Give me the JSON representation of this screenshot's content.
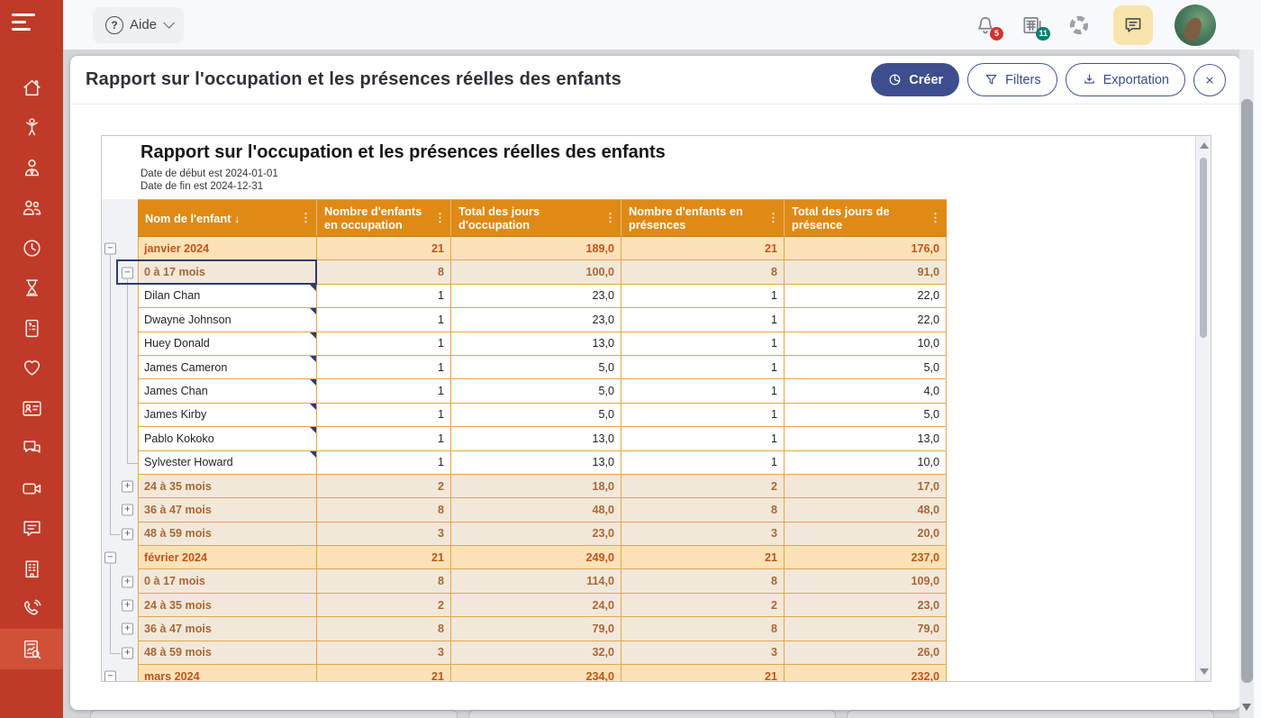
{
  "topbar": {
    "help_label": "Aide",
    "notifications_badge": "5",
    "news_badge": "11"
  },
  "sidebar": {
    "items": [
      {
        "id": "home",
        "icon": "home-icon"
      },
      {
        "id": "children",
        "icon": "child-icon"
      },
      {
        "id": "staff",
        "icon": "staff-icon"
      },
      {
        "id": "contacts",
        "icon": "people-icon"
      },
      {
        "id": "hours",
        "icon": "clock-icon"
      },
      {
        "id": "waitlist",
        "icon": "hourglass-icon"
      },
      {
        "id": "billing",
        "icon": "invoice-icon"
      },
      {
        "id": "health",
        "icon": "heart-icon"
      },
      {
        "id": "profiles",
        "icon": "id-card-icon"
      },
      {
        "id": "conversations",
        "icon": "chats-icon"
      },
      {
        "id": "video",
        "icon": "video-camera-icon"
      },
      {
        "id": "messages",
        "icon": "message-icon"
      },
      {
        "id": "organization",
        "icon": "building-icon"
      },
      {
        "id": "calls",
        "icon": "phone-icon"
      },
      {
        "id": "reports",
        "icon": "report-search-icon",
        "active": true
      }
    ]
  },
  "modal": {
    "title": "Rapport sur l'occupation et les présences réelles des enfants",
    "create_label": "Créer",
    "filters_label": "Filters",
    "export_label": "Exportation"
  },
  "report": {
    "title": "Rapport sur l'occupation et les présences réelles des enfants",
    "subtitles": [
      "Date de début est 2024-01-01",
      "Date de fin est 2024-12-31"
    ],
    "table": {
      "sort_indicator": "↓",
      "columns": [
        "Nom de l'enfant",
        "Nombre d'enfants en occupation",
        "Total des jours d'occupation",
        "Nombre d'enfants en présences",
        "Total des jours de présence"
      ],
      "rows": [
        {
          "label": "janvier 2024",
          "type": "month",
          "exp": "minus",
          "lines": {
            "l1": "box",
            "l2": "none"
          },
          "values": [
            "21",
            "189,0",
            "21",
            "176,0"
          ]
        },
        {
          "label": "0 à 17 mois",
          "type": "age",
          "exp": "minus",
          "selected": true,
          "lines": {
            "l1": "line",
            "l2": "box"
          },
          "values": [
            "8",
            "100,0",
            "8",
            "91,0"
          ]
        },
        {
          "label": "Dilan Chan",
          "type": "child",
          "lines": {
            "l1": "line",
            "l2": "line"
          },
          "values": [
            "1",
            "23,0",
            "1",
            "22,0"
          ]
        },
        {
          "label": "Dwayne Johnson",
          "type": "child",
          "lines": {
            "l1": "line",
            "l2": "line"
          },
          "values": [
            "1",
            "23,0",
            "1",
            "22,0"
          ]
        },
        {
          "label": "Huey Donald",
          "type": "child",
          "lines": {
            "l1": "line",
            "l2": "line"
          },
          "values": [
            "1",
            "13,0",
            "1",
            "10,0"
          ]
        },
        {
          "label": "James Cameron",
          "type": "child",
          "lines": {
            "l1": "line",
            "l2": "line"
          },
          "values": [
            "1",
            "5,0",
            "1",
            "5,0"
          ]
        },
        {
          "label": "James Chan",
          "type": "child",
          "lines": {
            "l1": "line",
            "l2": "line"
          },
          "values": [
            "1",
            "5,0",
            "1",
            "4,0"
          ]
        },
        {
          "label": "James Kirby",
          "type": "child",
          "lines": {
            "l1": "line",
            "l2": "line"
          },
          "values": [
            "1",
            "5,0",
            "1",
            "5,0"
          ]
        },
        {
          "label": "Pablo Kokoko",
          "type": "child",
          "lines": {
            "l1": "line",
            "l2": "line"
          },
          "values": [
            "1",
            "13,0",
            "1",
            "13,0"
          ]
        },
        {
          "label": "Sylvester Howard",
          "type": "child",
          "lines": {
            "l1": "line",
            "l2": "corner"
          },
          "values": [
            "1",
            "13,0",
            "1",
            "10,0"
          ]
        },
        {
          "label": "24 à 35 mois",
          "type": "age",
          "exp": "plus",
          "lines": {
            "l1": "line",
            "l2": "box"
          },
          "values": [
            "2",
            "18,0",
            "2",
            "17,0"
          ]
        },
        {
          "label": "36 à 47 mois",
          "type": "age",
          "exp": "plus",
          "lines": {
            "l1": "line",
            "l2": "box"
          },
          "values": [
            "8",
            "48,0",
            "8",
            "48,0"
          ]
        },
        {
          "label": "48 à 59 mois",
          "type": "age",
          "exp": "plus",
          "lines": {
            "l1": "corner",
            "l2": "box"
          },
          "values": [
            "3",
            "23,0",
            "3",
            "20,0"
          ]
        },
        {
          "label": "février 2024",
          "type": "month",
          "exp": "minus",
          "lines": {
            "l1": "box",
            "l2": "none"
          },
          "values": [
            "21",
            "249,0",
            "21",
            "237,0"
          ]
        },
        {
          "label": "0 à 17 mois",
          "type": "age",
          "exp": "plus",
          "lines": {
            "l1": "line",
            "l2": "box"
          },
          "values": [
            "8",
            "114,0",
            "8",
            "109,0"
          ]
        },
        {
          "label": "24 à 35 mois",
          "type": "age",
          "exp": "plus",
          "lines": {
            "l1": "line",
            "l2": "box"
          },
          "values": [
            "2",
            "24,0",
            "2",
            "23,0"
          ]
        },
        {
          "label": "36 à 47 mois",
          "type": "age",
          "exp": "plus",
          "lines": {
            "l1": "line",
            "l2": "box"
          },
          "values": [
            "8",
            "79,0",
            "8",
            "79,0"
          ]
        },
        {
          "label": "48 à 59 mois",
          "type": "age",
          "exp": "plus",
          "lines": {
            "l1": "corner",
            "l2": "box"
          },
          "values": [
            "3",
            "32,0",
            "3",
            "26,0"
          ]
        },
        {
          "label": "mars 2024",
          "type": "month",
          "exp": "minus",
          "clipped": true,
          "lines": {
            "l1": "box",
            "l2": "none"
          },
          "values": [
            "21",
            "234,0",
            "21",
            "232,0"
          ]
        }
      ]
    }
  },
  "colors": {
    "sidebar_red": "#bf3b28",
    "sidebar_active": "#d15138",
    "accent_navy": "#3d4e8e",
    "table_header_orange": "#de8a15",
    "month_row_bg": "#fce2b6",
    "age_row_bg": "#f2e8da",
    "badge_red": "#cf3430",
    "badge_teal": "#0e7d72",
    "chat_button_yellow": "#f9e4ab"
  }
}
